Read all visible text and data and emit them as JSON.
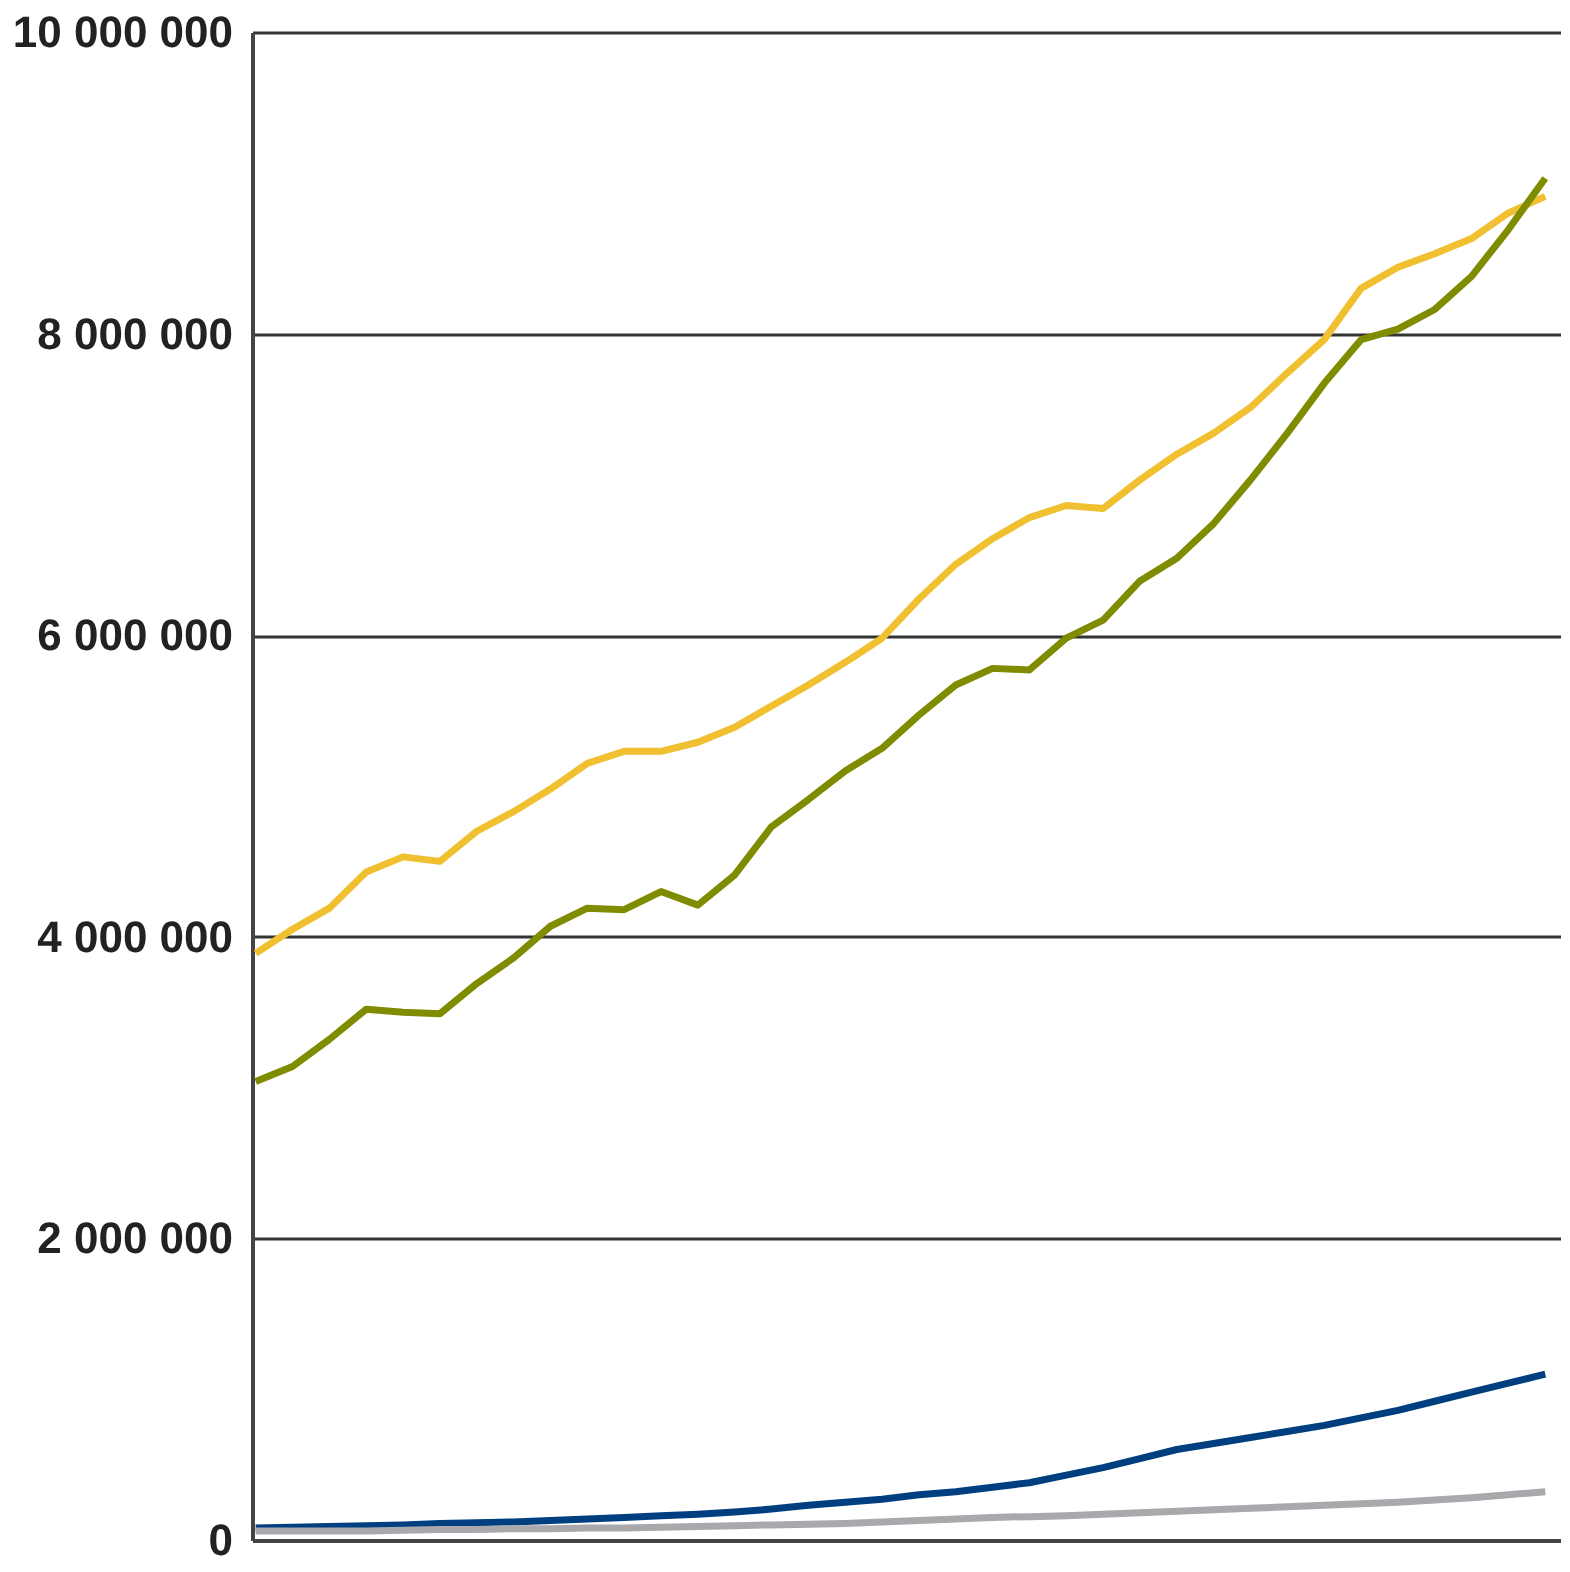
{
  "chart_data": {
    "type": "line",
    "categories": [
      null,
      null,
      null,
      null,
      null,
      null,
      null,
      null,
      null,
      null,
      null,
      null,
      null,
      null,
      null,
      null,
      null,
      null,
      null,
      null,
      null,
      null,
      null,
      null,
      null,
      null,
      null,
      null,
      null,
      null,
      null,
      null,
      null,
      null,
      null,
      null
    ],
    "series": [
      {
        "color": "#f0c030",
        "values": [
          3890000,
          4050000,
          4190000,
          4430000,
          4530000,
          4500000,
          4700000,
          4830000,
          4980000,
          5150000,
          5230000,
          5230000,
          5290000,
          5390000,
          5530000,
          5670000,
          5820000,
          5980000,
          6240000,
          6470000,
          6640000,
          6780000,
          6860000,
          6840000,
          7030000,
          7200000,
          7340000,
          7510000,
          7740000,
          7960000,
          8300000,
          8440000,
          8530000,
          8630000,
          8800000,
          8910000
        ]
      },
      {
        "color": "#7f8c00",
        "values": [
          3040000,
          3140000,
          3320000,
          3520000,
          3500000,
          3490000,
          3690000,
          3860000,
          4070000,
          4190000,
          4180000,
          4300000,
          4210000,
          4410000,
          4730000,
          4910000,
          5100000,
          5250000,
          5470000,
          5670000,
          5780000,
          5770000,
          5980000,
          6100000,
          6360000,
          6510000,
          6740000,
          7030000,
          7340000,
          7670000,
          7960000,
          8030000,
          8160000,
          8380000,
          8690000,
          9030000
        ]
      },
      {
        "color": "#003f7f",
        "values": [
          80000,
          85000,
          90000,
          95000,
          100000,
          110000,
          115000,
          120000,
          130000,
          140000,
          150000,
          160000,
          170000,
          185000,
          205000,
          230000,
          250000,
          270000,
          300000,
          320000,
          350000,
          380000,
          430000,
          480000,
          540000,
          600000,
          640000,
          680000,
          720000,
          760000,
          810000,
          860000,
          920000,
          980000,
          1040000,
          1100000
        ]
      },
      {
        "color": "#a8a8ad",
        "values": [
          60000,
          60000,
          60000,
          60000,
          65000,
          70000,
          70000,
          75000,
          75000,
          80000,
          80000,
          85000,
          90000,
          95000,
          100000,
          105000,
          110000,
          120000,
          130000,
          140000,
          150000,
          155000,
          160000,
          170000,
          180000,
          190000,
          200000,
          210000,
          220000,
          230000,
          240000,
          250000,
          265000,
          280000,
          300000,
          320000
        ]
      }
    ],
    "ylim": [
      0,
      10000000
    ],
    "yticks": [
      {
        "value": 0,
        "label": "0"
      },
      {
        "value": 2000000,
        "label": "2 000 000"
      },
      {
        "value": 4000000,
        "label": "4 000 000"
      },
      {
        "value": 6000000,
        "label": "6 000 000"
      },
      {
        "value": 8000000,
        "label": "8 000 000"
      },
      {
        "value": 10000000,
        "label": "10 000 000"
      }
    ],
    "grid": "y",
    "legend": false,
    "tick_labels": "y",
    "marker": "none",
    "line_style": "solid"
  }
}
